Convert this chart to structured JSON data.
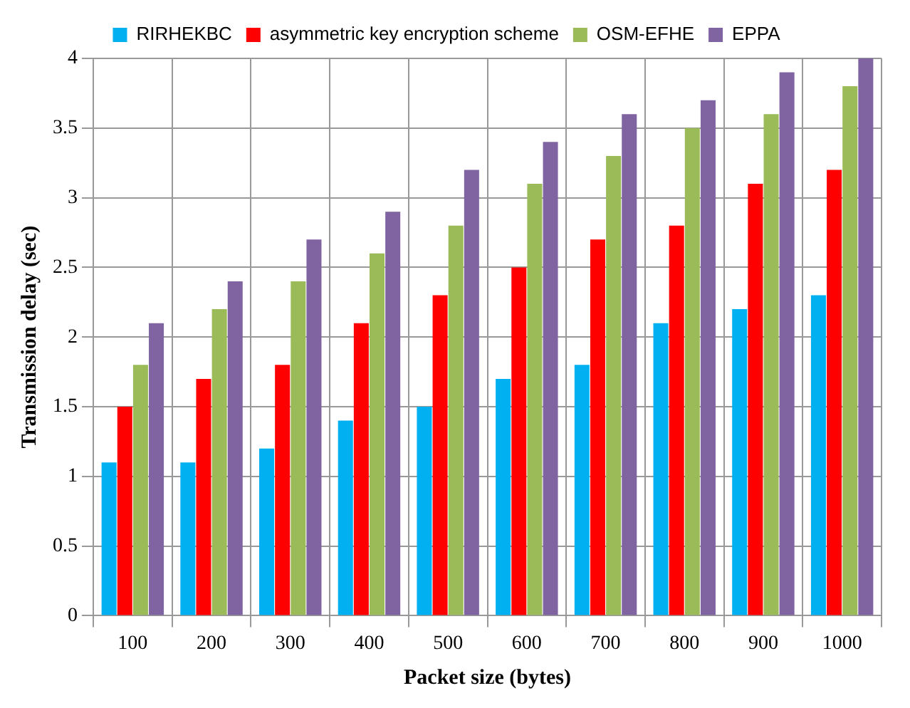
{
  "chart_data": {
    "type": "bar",
    "xlabel": "Packet size (bytes)",
    "ylabel": "Transmission delay (sec)",
    "categories": [
      "100",
      "200",
      "300",
      "400",
      "500",
      "600",
      "700",
      "800",
      "900",
      "1000"
    ],
    "series": [
      {
        "name": "RIRHEKBC",
        "color": "#00b0f0",
        "values": [
          1.1,
          1.1,
          1.2,
          1.4,
          1.5,
          1.7,
          1.8,
          2.1,
          2.2,
          2.3
        ]
      },
      {
        "name": "asymmetric key encryption scheme",
        "color": "#ff0000",
        "values": [
          1.5,
          1.7,
          1.8,
          2.1,
          2.3,
          2.5,
          2.7,
          2.8,
          3.1,
          3.2
        ]
      },
      {
        "name": "OSM-EFHE",
        "color": "#9bbb59",
        "values": [
          1.8,
          2.2,
          2.4,
          2.6,
          2.8,
          3.1,
          3.3,
          3.5,
          3.6,
          3.8
        ]
      },
      {
        "name": "EPPA",
        "color": "#8064a2",
        "values": [
          2.1,
          2.4,
          2.7,
          2.9,
          3.2,
          3.4,
          3.6,
          3.7,
          3.9,
          4.0
        ]
      }
    ],
    "ylim": [
      0,
      4
    ],
    "yticks": [
      0,
      0.5,
      1,
      1.5,
      2,
      2.5,
      3,
      3.5,
      4
    ],
    "grid": true,
    "legend": "top"
  }
}
